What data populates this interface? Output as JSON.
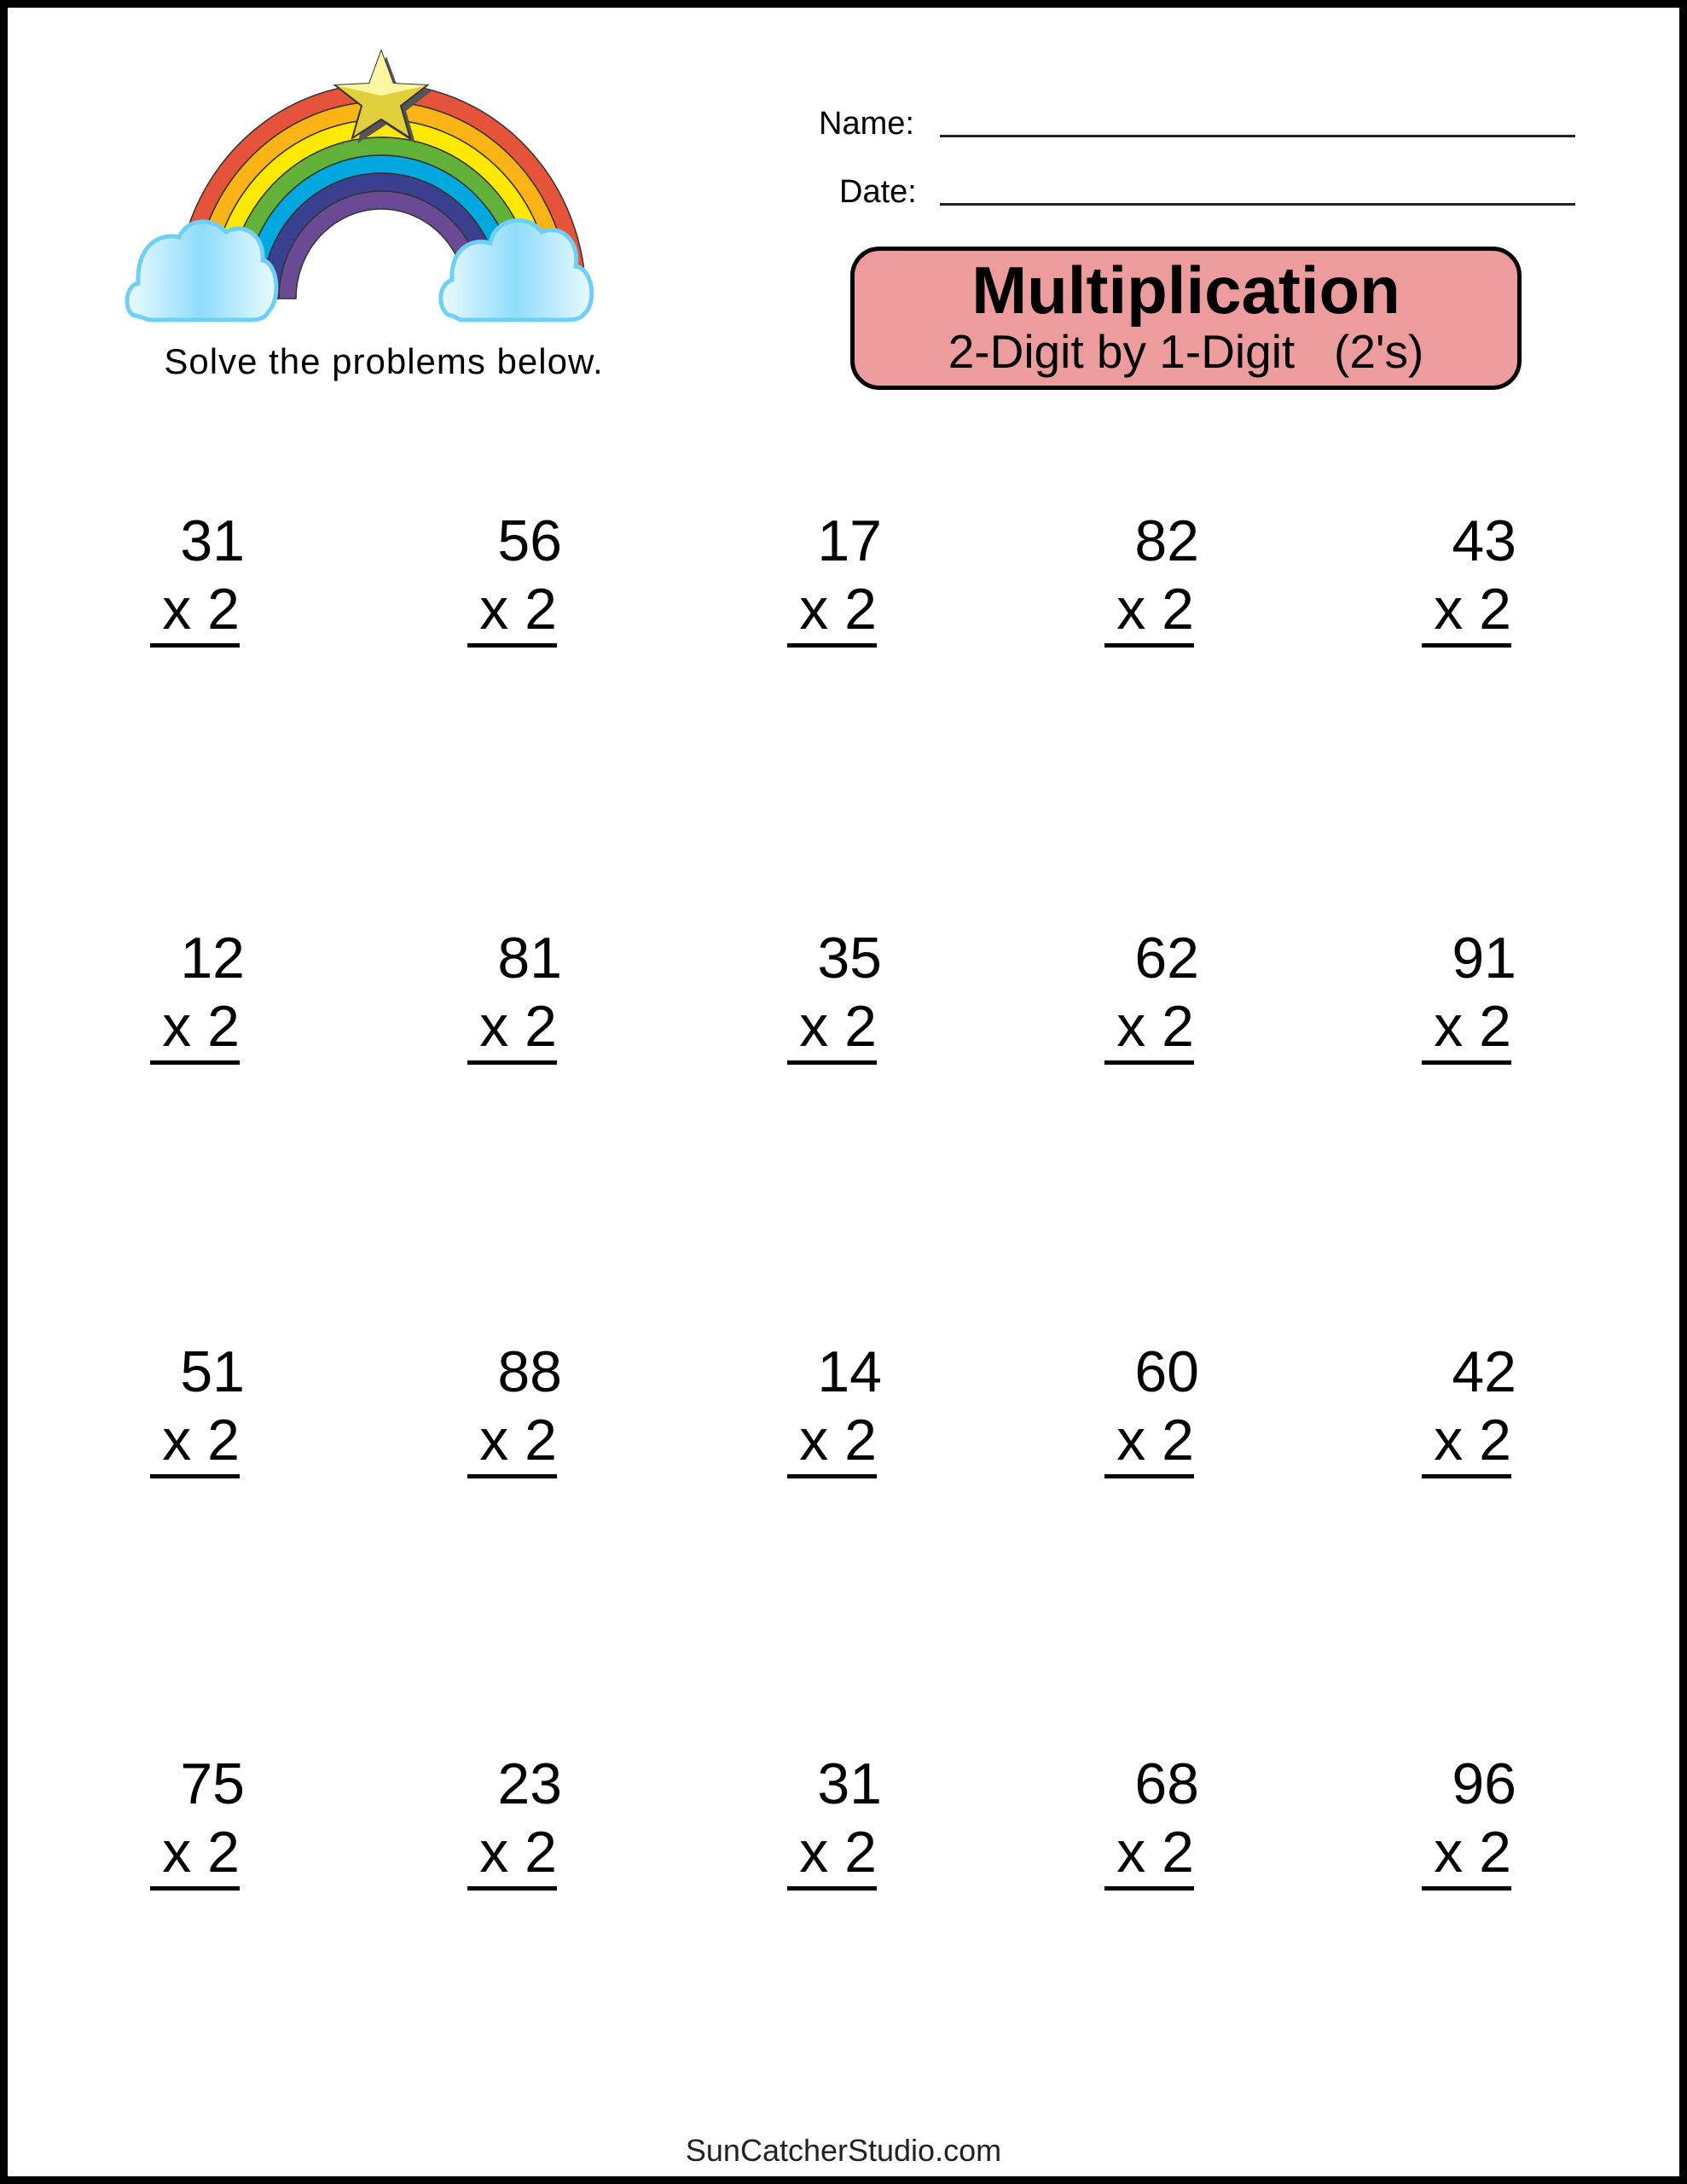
{
  "instructions": "Solve the problems below.",
  "fields": {
    "name_label": "Name:",
    "date_label": "Date:"
  },
  "title_box": {
    "title": "Multiplication",
    "subtitle": "2-Digit by 1-Digit   (2's)",
    "color": "#ec9c9c"
  },
  "problems": [
    [
      {
        "top": "31",
        "bottom": "x 2"
      },
      {
        "top": "56",
        "bottom": "x 2"
      },
      {
        "top": "17",
        "bottom": "x 2"
      },
      {
        "top": "82",
        "bottom": "x 2"
      },
      {
        "top": "43",
        "bottom": "x 2"
      }
    ],
    [
      {
        "top": "12",
        "bottom": "x 2"
      },
      {
        "top": "81",
        "bottom": "x 2"
      },
      {
        "top": "35",
        "bottom": "x 2"
      },
      {
        "top": "62",
        "bottom": "x 2"
      },
      {
        "top": "91",
        "bottom": "x 2"
      }
    ],
    [
      {
        "top": "51",
        "bottom": "x 2"
      },
      {
        "top": "88",
        "bottom": "x 2"
      },
      {
        "top": "14",
        "bottom": "x 2"
      },
      {
        "top": "60",
        "bottom": "x 2"
      },
      {
        "top": "42",
        "bottom": "x 2"
      }
    ],
    [
      {
        "top": "75",
        "bottom": "x 2"
      },
      {
        "top": "23",
        "bottom": "x 2"
      },
      {
        "top": "31",
        "bottom": "x 2"
      },
      {
        "top": "68",
        "bottom": "x 2"
      },
      {
        "top": "96",
        "bottom": "x 2"
      }
    ]
  ],
  "footer": "SunCatcherStudio.com",
  "illustration": {
    "icons": [
      "rainbow-icon",
      "star-icon",
      "cloud-icon"
    ],
    "rainbow_colors": [
      "#e4533a",
      "#fbb315",
      "#ffe900",
      "#62b23a",
      "#00a8e0",
      "#3b3f8f",
      "#6a4a94"
    ]
  }
}
